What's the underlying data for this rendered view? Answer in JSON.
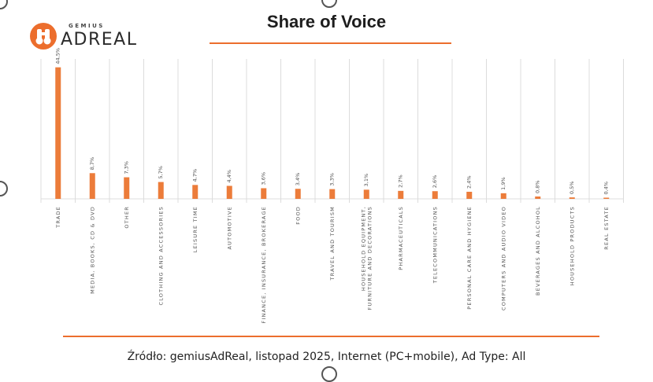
{
  "logo": {
    "small": "GEMIUS",
    "big": "ADREAL"
  },
  "colors": {
    "accent": "#ec6e2d",
    "bar": "#ec7c3a",
    "grid": "#dcdcdc",
    "text": "#555555"
  },
  "chart_data": {
    "type": "bar",
    "title": "Share of Voice",
    "ylim": [
      0,
      46
    ],
    "categories": [
      "TRADE",
      "MEDIA, BOOKS, CD & DVD",
      "OTHER",
      "CLOTHING AND ACCESSORIES",
      "LEISURE TIME",
      "AUTOMOTIVE",
      "FINANCE, INSURANCE, BROKERAGE",
      "FOOD",
      "TRAVEL AND TOURISM",
      "HOUSEHOLD EQUIPMENT, FURNITURE AND DECORATIONS",
      "PHARMACEUTICALS",
      "TELECOMMUNICATIONS",
      "PERSONAL CARE AND HYGIENE",
      "COMPUTERS AND AUDIO VIDEO",
      "BEVERAGES AND ALCOHOL",
      "HOUSEHOLD PRODUCTS",
      "REAL ESTATE"
    ],
    "values": [
      44.5,
      8.7,
      7.3,
      5.7,
      4.7,
      4.4,
      3.6,
      3.4,
      3.3,
      3.1,
      2.7,
      2.6,
      2.4,
      1.9,
      0.8,
      0.5,
      0.4
    ],
    "data_labels": [
      "44,5%",
      "8,7%",
      "7,3%",
      "5,7%",
      "4,7%",
      "4,4%",
      "3,6%",
      "3,4%",
      "3,3%",
      "3,1%",
      "2,7%",
      "2,6%",
      "2,4%",
      "1,9%",
      "0,8%",
      "0,5%",
      "0,4%"
    ]
  },
  "source": "Źródło: gemiusAdReal, listopad 2025, Internet (PC+mobile), Ad Type: All"
}
